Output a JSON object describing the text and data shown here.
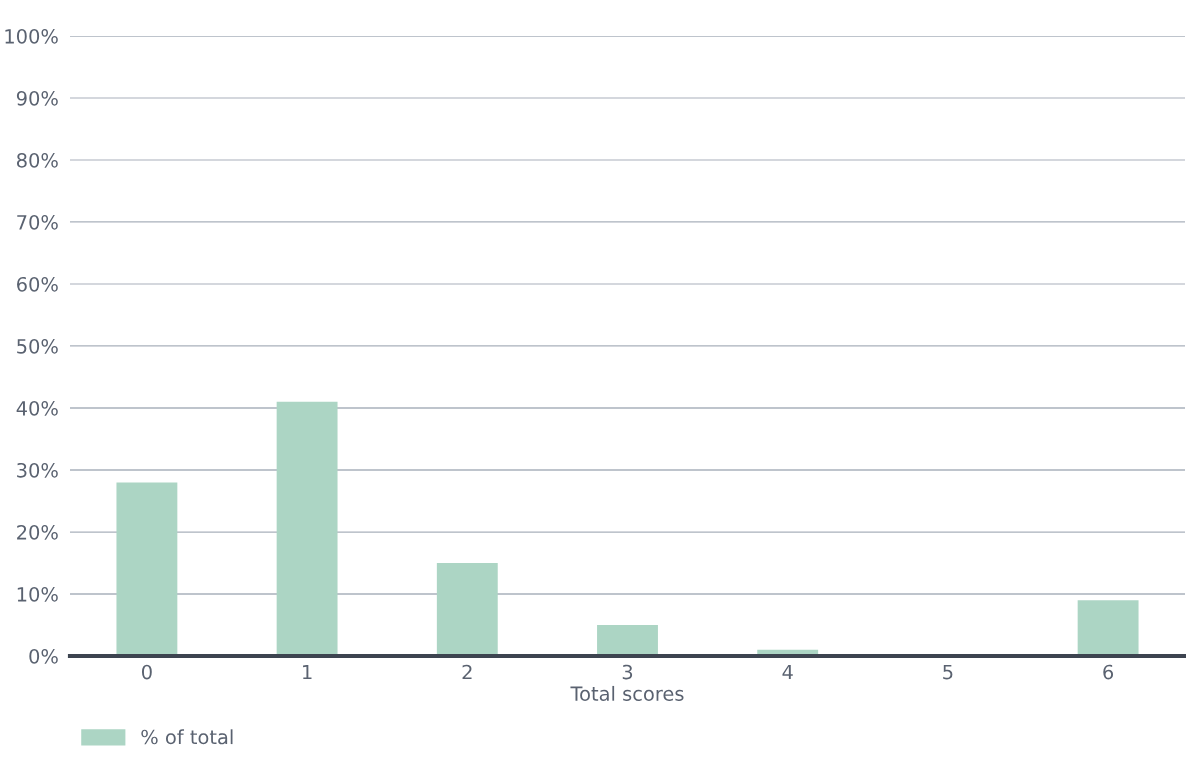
{
  "chart_data": {
    "type": "bar",
    "xlabel": "Total scores",
    "categories": [
      "0",
      "1",
      "2",
      "3",
      "4",
      "5",
      "6"
    ],
    "series": [
      {
        "name": "% of total",
        "color": "#acd5c4",
        "values": [
          28,
          41,
          15,
          5,
          1,
          0,
          9
        ]
      }
    ],
    "ylim": [
      0,
      100
    ],
    "yticks": [
      {
        "value": 0,
        "label": "0%"
      },
      {
        "value": 10,
        "label": "10%"
      },
      {
        "value": 20,
        "label": "20%"
      },
      {
        "value": 30,
        "label": "30%"
      },
      {
        "value": 40,
        "label": "40%"
      },
      {
        "value": 50,
        "label": "50%"
      },
      {
        "value": 60,
        "label": "60%"
      },
      {
        "value": 70,
        "label": "70%"
      },
      {
        "value": 80,
        "label": "80%"
      },
      {
        "value": 90,
        "label": "90%"
      },
      {
        "value": 100,
        "label": "100%"
      }
    ],
    "grid": "y",
    "legend": "bottom left"
  }
}
